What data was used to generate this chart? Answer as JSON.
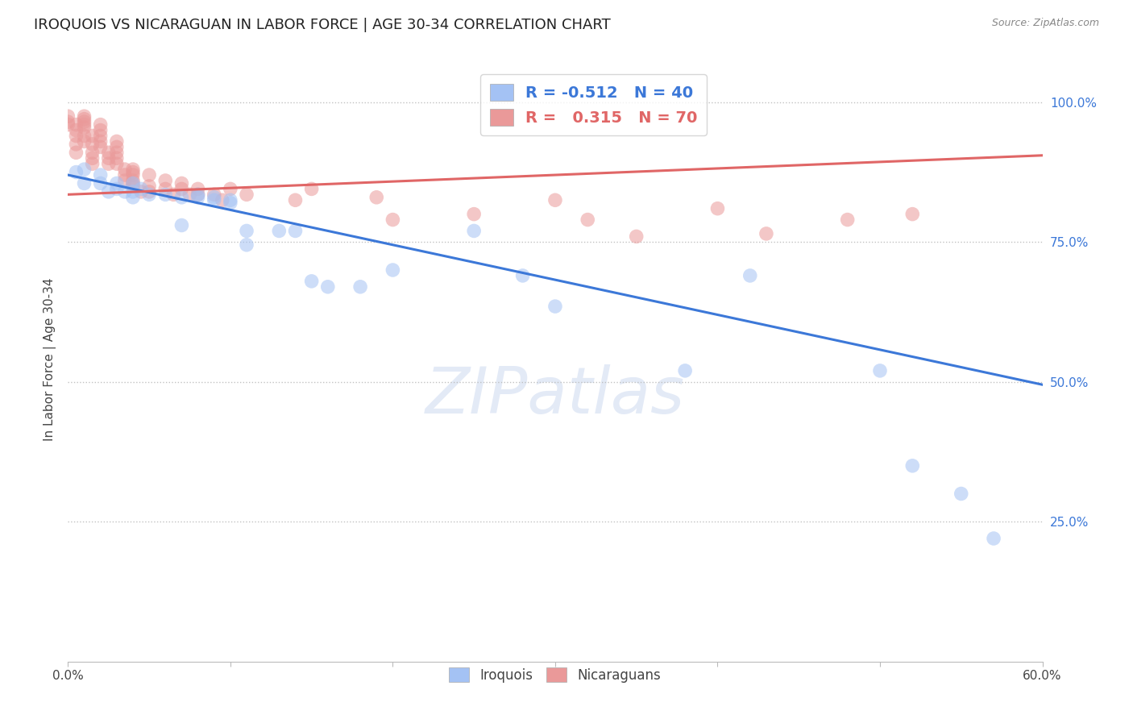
{
  "title": "IROQUOIS VS NICARAGUAN IN LABOR FORCE | AGE 30-34 CORRELATION CHART",
  "source": "Source: ZipAtlas.com",
  "ylabel": "In Labor Force | Age 30-34",
  "ytick_labels": [
    "100.0%",
    "75.0%",
    "50.0%",
    "25.0%"
  ],
  "ytick_values": [
    1.0,
    0.75,
    0.5,
    0.25
  ],
  "xlim": [
    0.0,
    0.6
  ],
  "ylim": [
    0.0,
    1.08
  ],
  "legend_r_blue": "-0.512",
  "legend_n_blue": "40",
  "legend_r_pink": "0.315",
  "legend_n_pink": "70",
  "blue_color": "#a4c2f4",
  "pink_color": "#ea9999",
  "blue_line_color": "#3c78d8",
  "pink_line_color": "#e06666",
  "watermark": "ZIPatlas",
  "blue_line": [
    [
      0.0,
      0.87
    ],
    [
      0.6,
      0.495
    ]
  ],
  "pink_line": [
    [
      0.0,
      0.835
    ],
    [
      0.6,
      0.905
    ]
  ],
  "iroquois_points": [
    [
      0.005,
      0.875
    ],
    [
      0.01,
      0.88
    ],
    [
      0.01,
      0.855
    ],
    [
      0.02,
      0.87
    ],
    [
      0.02,
      0.855
    ],
    [
      0.025,
      0.84
    ],
    [
      0.03,
      0.855
    ],
    [
      0.03,
      0.845
    ],
    [
      0.035,
      0.84
    ],
    [
      0.04,
      0.855
    ],
    [
      0.04,
      0.84
    ],
    [
      0.04,
      0.83
    ],
    [
      0.045,
      0.845
    ],
    [
      0.05,
      0.835
    ],
    [
      0.06,
      0.835
    ],
    [
      0.07,
      0.83
    ],
    [
      0.07,
      0.78
    ],
    [
      0.08,
      0.835
    ],
    [
      0.08,
      0.83
    ],
    [
      0.09,
      0.83
    ],
    [
      0.09,
      0.825
    ],
    [
      0.1,
      0.825
    ],
    [
      0.1,
      0.82
    ],
    [
      0.11,
      0.77
    ],
    [
      0.11,
      0.745
    ],
    [
      0.13,
      0.77
    ],
    [
      0.14,
      0.77
    ],
    [
      0.15,
      0.68
    ],
    [
      0.16,
      0.67
    ],
    [
      0.18,
      0.67
    ],
    [
      0.2,
      0.7
    ],
    [
      0.25,
      0.77
    ],
    [
      0.28,
      0.69
    ],
    [
      0.3,
      0.635
    ],
    [
      0.38,
      0.52
    ],
    [
      0.42,
      0.69
    ],
    [
      0.5,
      0.52
    ],
    [
      0.52,
      0.35
    ],
    [
      0.57,
      0.22
    ],
    [
      0.55,
      0.3
    ]
  ],
  "nicaraguan_points": [
    [
      0.0,
      0.975
    ],
    [
      0.0,
      0.965
    ],
    [
      0.0,
      0.96
    ],
    [
      0.005,
      0.96
    ],
    [
      0.005,
      0.95
    ],
    [
      0.005,
      0.94
    ],
    [
      0.005,
      0.925
    ],
    [
      0.005,
      0.91
    ],
    [
      0.01,
      0.975
    ],
    [
      0.01,
      0.97
    ],
    [
      0.01,
      0.965
    ],
    [
      0.01,
      0.96
    ],
    [
      0.01,
      0.955
    ],
    [
      0.01,
      0.94
    ],
    [
      0.01,
      0.93
    ],
    [
      0.015,
      0.94
    ],
    [
      0.015,
      0.925
    ],
    [
      0.015,
      0.91
    ],
    [
      0.015,
      0.9
    ],
    [
      0.015,
      0.89
    ],
    [
      0.02,
      0.96
    ],
    [
      0.02,
      0.95
    ],
    [
      0.02,
      0.94
    ],
    [
      0.02,
      0.93
    ],
    [
      0.02,
      0.92
    ],
    [
      0.025,
      0.91
    ],
    [
      0.025,
      0.9
    ],
    [
      0.025,
      0.89
    ],
    [
      0.03,
      0.93
    ],
    [
      0.03,
      0.92
    ],
    [
      0.03,
      0.91
    ],
    [
      0.03,
      0.9
    ],
    [
      0.03,
      0.89
    ],
    [
      0.035,
      0.88
    ],
    [
      0.035,
      0.87
    ],
    [
      0.035,
      0.86
    ],
    [
      0.04,
      0.88
    ],
    [
      0.04,
      0.875
    ],
    [
      0.04,
      0.87
    ],
    [
      0.04,
      0.86
    ],
    [
      0.04,
      0.855
    ],
    [
      0.04,
      0.85
    ],
    [
      0.045,
      0.84
    ],
    [
      0.05,
      0.87
    ],
    [
      0.05,
      0.85
    ],
    [
      0.05,
      0.84
    ],
    [
      0.06,
      0.86
    ],
    [
      0.06,
      0.845
    ],
    [
      0.065,
      0.835
    ],
    [
      0.07,
      0.855
    ],
    [
      0.07,
      0.845
    ],
    [
      0.075,
      0.835
    ],
    [
      0.08,
      0.845
    ],
    [
      0.08,
      0.835
    ],
    [
      0.09,
      0.835
    ],
    [
      0.095,
      0.825
    ],
    [
      0.1,
      0.845
    ],
    [
      0.11,
      0.835
    ],
    [
      0.14,
      0.825
    ],
    [
      0.15,
      0.845
    ],
    [
      0.19,
      0.83
    ],
    [
      0.2,
      0.79
    ],
    [
      0.25,
      0.8
    ],
    [
      0.3,
      0.825
    ],
    [
      0.32,
      0.79
    ],
    [
      0.35,
      0.76
    ],
    [
      0.4,
      0.81
    ],
    [
      0.43,
      0.765
    ],
    [
      0.48,
      0.79
    ],
    [
      0.52,
      0.8
    ]
  ]
}
